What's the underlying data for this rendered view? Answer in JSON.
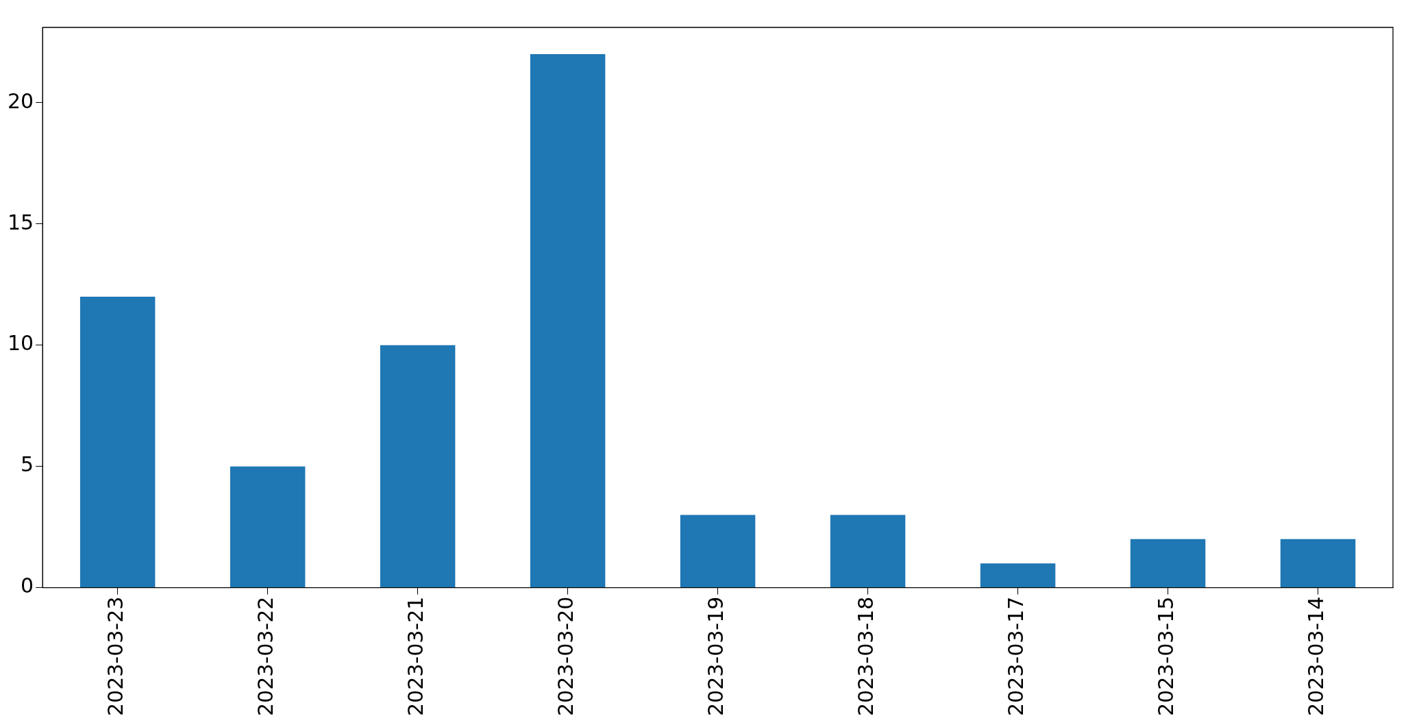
{
  "chart_data": {
    "type": "bar",
    "categories": [
      "2023-03-23",
      "2023-03-22",
      "2023-03-21",
      "2023-03-20",
      "2023-03-19",
      "2023-03-18",
      "2023-03-17",
      "2023-03-15",
      "2023-03-14"
    ],
    "values": [
      12,
      5,
      10,
      22,
      3,
      3,
      1,
      2,
      2
    ],
    "color": "#1f77b4",
    "ylim": [
      0,
      23.1
    ],
    "yticks": [
      0,
      5,
      10,
      15,
      20
    ],
    "grid": false,
    "legend": false
  }
}
